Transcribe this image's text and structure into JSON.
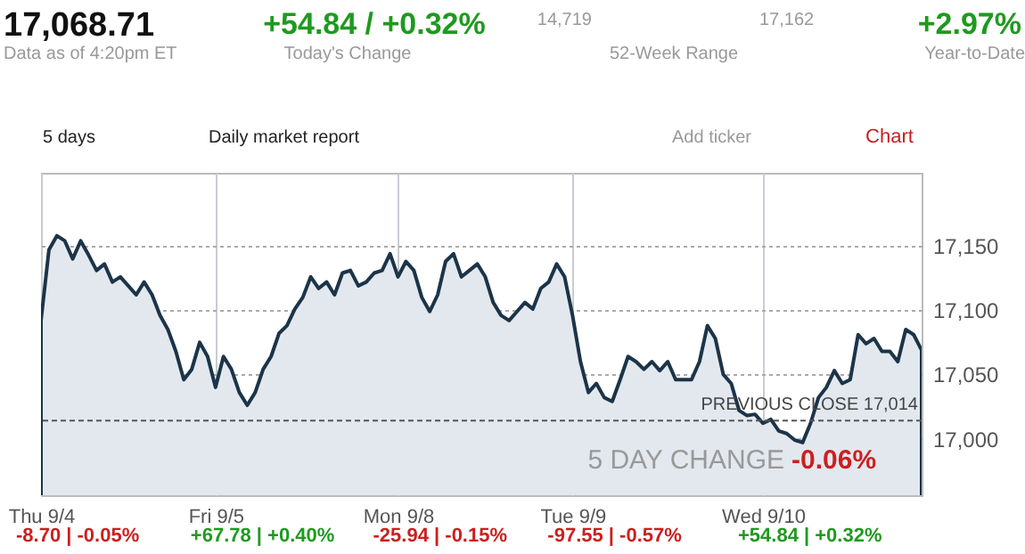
{
  "chart_data": {
    "type": "area",
    "title": "17,068.71",
    "subtitle": "Data as of 4:20pm ET",
    "categories": [
      "Thu 9/4",
      null,
      null,
      null,
      null,
      null,
      null,
      null,
      null,
      null,
      null,
      null,
      null,
      null,
      null,
      null,
      null,
      null,
      null,
      null,
      null,
      null,
      "Fri 9/5",
      null,
      null,
      null,
      null,
      null,
      null,
      null,
      null,
      null,
      null,
      null,
      null,
      null,
      null,
      null,
      null,
      null,
      null,
      null,
      null,
      null,
      null,
      "Mon 9/8",
      null,
      null,
      null,
      null,
      null,
      null,
      null,
      null,
      null,
      null,
      null,
      null,
      null,
      null,
      null,
      null,
      null,
      null,
      null,
      null,
      null,
      "Tue 9/9",
      null,
      null,
      null,
      null,
      null,
      null,
      null,
      null,
      null,
      null,
      null,
      null,
      null,
      null,
      null,
      null,
      null,
      null,
      null,
      null,
      null,
      null,
      null,
      "Wed 9/10",
      null,
      null,
      null,
      null,
      null,
      null,
      null,
      null,
      null,
      null,
      null,
      null,
      null,
      null,
      null,
      null,
      null,
      null,
      null,
      null
    ],
    "series": [
      {
        "color": "#1c3448",
        "values": [
          17092,
          17147,
          17158,
          17154,
          17140,
          17154,
          17143,
          17131,
          17136,
          17122,
          17126,
          17119,
          17112,
          17122,
          17112,
          17096,
          17085,
          17068,
          17046,
          17054,
          17075,
          17064,
          17040,
          17064,
          17054,
          17036,
          17026,
          17036,
          17054,
          17064,
          17082,
          17088,
          17101,
          17110,
          17126,
          17117,
          17122,
          17112,
          17129,
          17131,
          17119,
          17122,
          17129,
          17131,
          17144,
          17126,
          17138,
          17131,
          17110,
          17099,
          17112,
          17138,
          17144,
          17126,
          17131,
          17136,
          17126,
          17106,
          17096,
          17092,
          17099,
          17106,
          17101,
          17117,
          17122,
          17136,
          17126,
          17096,
          17060,
          17036,
          17043,
          17032,
          17029,
          17046,
          17064,
          17060,
          17054,
          17060,
          17053,
          17060,
          17046,
          17046,
          17046,
          17060,
          17088,
          17078,
          17050,
          17043,
          17022,
          17018,
          17019,
          17012,
          17015,
          17006,
          17004,
          16999,
          16997,
          17012,
          17032,
          17040,
          17053,
          17043,
          17046,
          17081,
          17074,
          17078,
          17068,
          17068,
          17060,
          17085,
          17081,
          17069
        ]
      }
    ],
    "ylim": [
      16956,
      17207
    ],
    "yticks": [
      {
        "value": 17000,
        "label": "17,000"
      },
      {
        "value": 17050,
        "label": "17,050"
      },
      {
        "value": 17100,
        "label": "17,100"
      },
      {
        "value": 17150,
        "label": "17,150"
      }
    ],
    "grid": true,
    "ref_lines": [
      {
        "axis": "y",
        "value": 17014,
        "label": "PREVIOUS CLOSE 17,014",
        "line_style": "dashed",
        "color": "#555555"
      }
    ],
    "annotations": [
      "+54.84 / +0.32%",
      "Today's Change",
      "14,719",
      "17,162",
      "52-Week Range",
      "+2.97%",
      "Year-to-Date",
      "5 days",
      "Daily market report",
      "Add ticker",
      "Chart",
      "5 DAY CHANGE",
      "-0.06%",
      "-8.70 | -0.05%",
      "+67.78 | +0.40%",
      "-25.94 | -0.15%",
      "-97.55 | -0.57%",
      "+54.84 | +0.32%"
    ]
  }
}
